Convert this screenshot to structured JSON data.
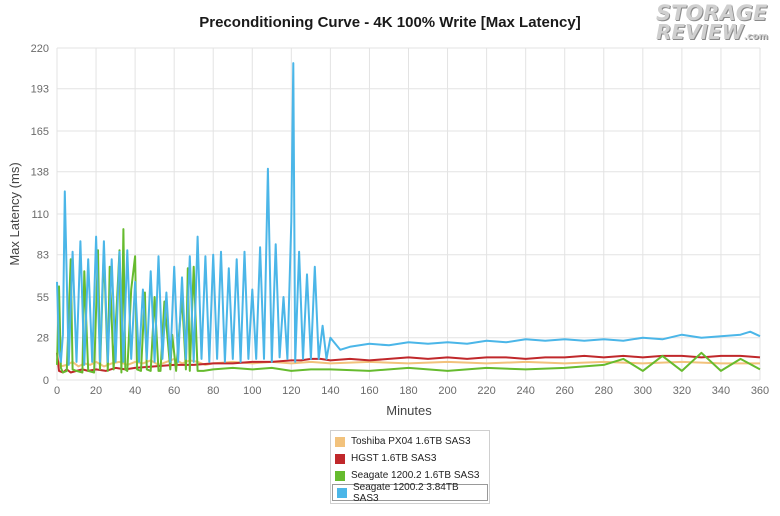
{
  "logo": {
    "line1": "STORAGE",
    "line2": "REVIEW",
    "suffix": ".com"
  },
  "chart_data": {
    "type": "line",
    "title": "Preconditioning Curve - 4K 100% Write [Max Latency]",
    "xlabel": "Minutes",
    "ylabel": "Max Latency (ms)",
    "xlim": [
      0,
      360
    ],
    "ylim": [
      0,
      220
    ],
    "x_ticks": [
      0,
      20,
      40,
      60,
      80,
      100,
      120,
      140,
      160,
      180,
      200,
      220,
      240,
      260,
      280,
      300,
      320,
      340,
      360
    ],
    "y_ticks": [
      0,
      28,
      55,
      83,
      110,
      138,
      165,
      193,
      220
    ],
    "grid": true,
    "legend_position": "bottom",
    "series": [
      {
        "name": "Toshiba PX04 1.6TB SAS3",
        "color": "#f2c27c",
        "x": [
          0,
          2,
          5,
          8,
          11,
          14,
          17,
          20,
          24,
          28,
          32,
          36,
          40,
          44,
          48,
          52,
          56,
          60,
          64,
          68,
          72,
          76,
          80,
          90,
          100,
          110,
          120,
          130,
          140,
          160,
          180,
          200,
          220,
          240,
          260,
          280,
          300,
          320,
          340,
          360
        ],
        "y": [
          14,
          9,
          10,
          12,
          9,
          11,
          10,
          12,
          9,
          11,
          12,
          10,
          12,
          11,
          13,
          10,
          12,
          14,
          11,
          13,
          12,
          10,
          11,
          12,
          11,
          12,
          11,
          12,
          11,
          12,
          11,
          12,
          11,
          12,
          11,
          12,
          11,
          12,
          11,
          11
        ]
      },
      {
        "name": "HGST 1.6TB SAS3",
        "color": "#c0282b",
        "x": [
          0,
          1,
          3,
          5,
          7,
          10,
          13,
          16,
          20,
          25,
          30,
          35,
          40,
          50,
          60,
          70,
          80,
          90,
          100,
          110,
          120,
          125,
          130,
          135,
          140,
          150,
          160,
          170,
          180,
          190,
          200,
          210,
          220,
          230,
          240,
          250,
          260,
          270,
          280,
          290,
          300,
          310,
          320,
          330,
          340,
          350,
          360
        ],
        "y": [
          18,
          6,
          5,
          7,
          5,
          6,
          7,
          6,
          7,
          6,
          8,
          7,
          8,
          9,
          10,
          10,
          11,
          11,
          12,
          12,
          13,
          13,
          14,
          14,
          13,
          14,
          13,
          14,
          15,
          14,
          15,
          14,
          15,
          15,
          14,
          15,
          15,
          16,
          15,
          16,
          15,
          16,
          16,
          15,
          16,
          16,
          15
        ]
      },
      {
        "name": "Seagate 1200.2 1.6TB SAS3",
        "color": "#66bb2e",
        "x": [
          0,
          1,
          2,
          3,
          5,
          7,
          8,
          10,
          13,
          14,
          16,
          19,
          21,
          22,
          24,
          26,
          27,
          29,
          32,
          33,
          34,
          35,
          36,
          38,
          40,
          41,
          43,
          45,
          46,
          48,
          50,
          52,
          53,
          55,
          58,
          59,
          61,
          64,
          66,
          67,
          68,
          70,
          72,
          75,
          80,
          90,
          100,
          110,
          120,
          130,
          140,
          160,
          180,
          200,
          220,
          240,
          260,
          280,
          290,
          300,
          310,
          320,
          330,
          340,
          350,
          360
        ],
        "y": [
          10,
          62,
          8,
          5,
          6,
          80,
          7,
          6,
          5,
          72,
          6,
          5,
          86,
          7,
          86,
          6,
          75,
          7,
          86,
          5,
          100,
          7,
          6,
          60,
          82,
          7,
          6,
          58,
          7,
          6,
          55,
          6,
          6,
          52,
          7,
          30,
          6,
          55,
          7,
          74,
          6,
          75,
          6,
          6,
          7,
          8,
          7,
          8,
          6,
          7,
          7,
          6,
          8,
          6,
          8,
          7,
          8,
          10,
          14,
          6,
          16,
          6,
          18,
          6,
          14,
          7
        ]
      },
      {
        "name": "Seagate 1200.2 3.84TB SAS3",
        "color": "#4bb6e8",
        "x": [
          0,
          1,
          2,
          3,
          4,
          6,
          8,
          10,
          12,
          14,
          16,
          18,
          20,
          22,
          24,
          26,
          28,
          30,
          32,
          34,
          36,
          38,
          40,
          42,
          44,
          46,
          48,
          50,
          52,
          54,
          56,
          58,
          60,
          62,
          64,
          66,
          68,
          70,
          72,
          74,
          76,
          78,
          80,
          82,
          84,
          86,
          88,
          90,
          92,
          94,
          96,
          98,
          100,
          102,
          104,
          106,
          108,
          110,
          112,
          114,
          116,
          118,
          120,
          121,
          122,
          124,
          126,
          128,
          130,
          132,
          134,
          136,
          138,
          140,
          145,
          150,
          160,
          170,
          180,
          190,
          200,
          210,
          220,
          230,
          240,
          250,
          260,
          270,
          280,
          290,
          300,
          310,
          320,
          330,
          340,
          350,
          355,
          360
        ],
        "y": [
          65,
          20,
          12,
          30,
          125,
          10,
          85,
          12,
          92,
          10,
          80,
          12,
          95,
          12,
          92,
          12,
          80,
          12,
          85,
          12,
          86,
          14,
          65,
          12,
          60,
          14,
          72,
          12,
          82,
          14,
          58,
          12,
          75,
          12,
          68,
          14,
          82,
          12,
          95,
          14,
          82,
          12,
          83,
          14,
          85,
          12,
          74,
          14,
          80,
          12,
          85,
          14,
          60,
          14,
          88,
          14,
          140,
          12,
          90,
          15,
          55,
          14,
          105,
          210,
          12,
          85,
          14,
          70,
          14,
          75,
          14,
          36,
          14,
          28,
          20,
          22,
          24,
          23,
          25,
          24,
          25,
          24,
          26,
          25,
          27,
          26,
          27,
          26,
          27,
          26,
          28,
          27,
          30,
          28,
          29,
          30,
          32,
          29
        ]
      }
    ]
  }
}
